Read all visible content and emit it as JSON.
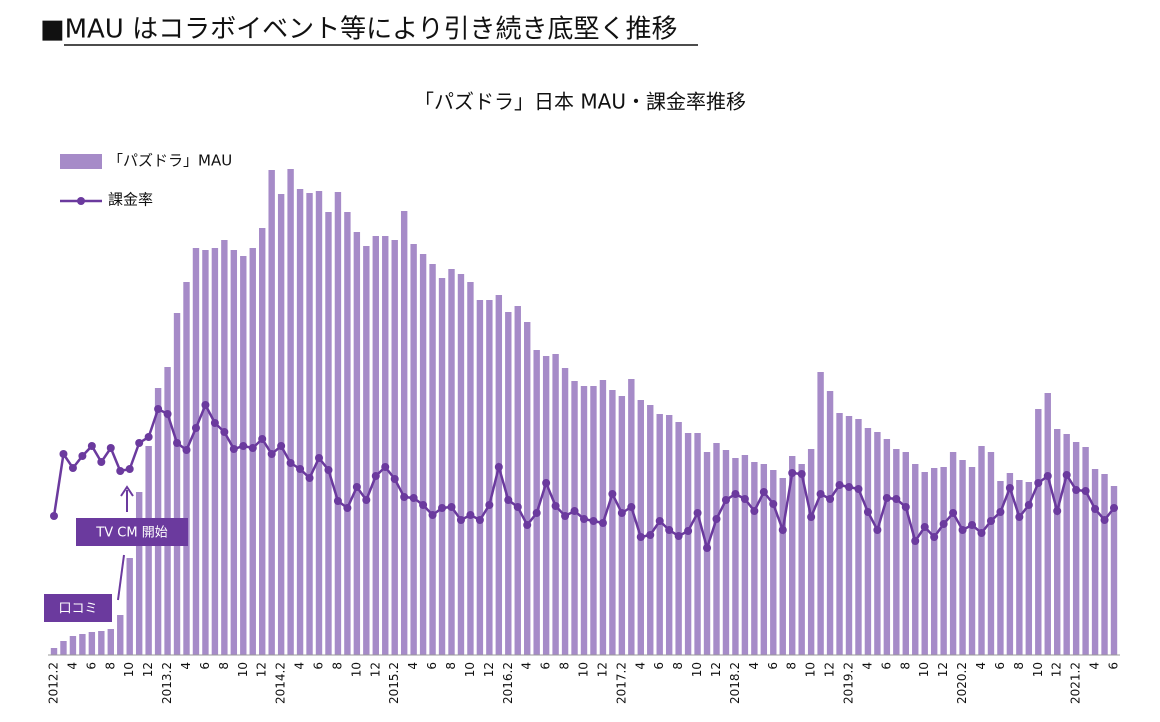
{
  "heading": "■MAU はコラボイベント等により引き続き底堅く推移",
  "chart_data": {
    "type": "bar",
    "title": "「パズドラ」日本 MAU・課金率推移",
    "categories": [
      "2012.2",
      null,
      "4",
      null,
      "6",
      null,
      "8",
      null,
      "10",
      null,
      "12",
      null,
      "2013.2",
      null,
      "4",
      null,
      "6",
      null,
      "8",
      null,
      "10",
      null,
      "12",
      null,
      "2014.2",
      null,
      "4",
      null,
      "6",
      null,
      "8",
      null,
      "10",
      null,
      "12",
      null,
      "2015.2",
      null,
      "4",
      null,
      "6",
      null,
      "8",
      null,
      "10",
      null,
      "12",
      null,
      "2016.2",
      null,
      "4",
      null,
      "6",
      null,
      "8",
      null,
      "10",
      null,
      "12",
      null,
      "2017.2",
      null,
      "4",
      null,
      "6",
      null,
      "8",
      null,
      "10",
      null,
      "12",
      null,
      "2018.2",
      null,
      "4",
      null,
      "6",
      null,
      "8",
      null,
      "10",
      null,
      "12",
      null,
      "2019.2",
      null,
      "4",
      null,
      "6",
      null,
      "8",
      null,
      "10",
      null,
      "12",
      null,
      "2020.2",
      null,
      "4",
      null,
      "6",
      null,
      "8",
      null,
      "10",
      null,
      "12",
      null,
      "2021.2",
      null,
      "4",
      null,
      "6"
    ],
    "series": [
      {
        "name": "「パズドラ」MAU",
        "type": "bar",
        "color": "#a68bc8",
        "values": [
          7,
          14,
          19,
          21,
          23,
          24,
          26,
          40,
          97,
          163,
          209,
          267,
          288,
          342,
          373,
          407,
          405,
          407,
          415,
          405,
          399,
          407,
          427,
          485,
          461,
          486,
          466,
          462,
          464,
          443,
          463,
          443,
          423,
          409,
          419,
          419,
          415,
          444,
          411,
          401,
          391,
          377,
          386,
          381,
          373,
          355,
          355,
          360,
          343,
          349,
          333,
          305,
          299,
          301,
          287,
          274,
          269,
          269,
          275,
          265,
          259,
          276,
          255,
          250,
          241,
          240,
          233,
          222,
          222,
          203,
          212,
          205,
          197,
          200,
          193,
          191,
          185,
          177,
          199,
          191,
          206,
          283,
          264,
          242,
          239,
          236,
          227,
          223,
          216,
          206,
          203,
          191,
          183,
          187,
          188,
          203,
          195,
          188,
          209,
          203,
          174,
          182,
          175,
          173,
          246,
          262,
          226,
          221,
          213,
          208,
          186,
          181,
          169
        ]
      },
      {
        "name": "課金率",
        "type": "line",
        "color": "#6b3a9e",
        "values": [
          139,
          201,
          187,
          199,
          209,
          193,
          207,
          184,
          186,
          212,
          218,
          246,
          241,
          212,
          205,
          227,
          250,
          232,
          223,
          206,
          209,
          207,
          216,
          201,
          209,
          192,
          186,
          177,
          197,
          185,
          154,
          147,
          168,
          155,
          179,
          188,
          176,
          158,
          157,
          150,
          140,
          147,
          148,
          135,
          140,
          135,
          150,
          188,
          155,
          148,
          130,
          142,
          172,
          149,
          139,
          144,
          136,
          134,
          132,
          161,
          142,
          148,
          118,
          120,
          134,
          125,
          119,
          124,
          142,
          107,
          136,
          155,
          161,
          156,
          144,
          163,
          151,
          125,
          182,
          181,
          138,
          161,
          156,
          170,
          168,
          166,
          143,
          125,
          157,
          156,
          148,
          114,
          128,
          118,
          131,
          142,
          125,
          130,
          122,
          134,
          143,
          167,
          138,
          150,
          172,
          179,
          144,
          180,
          165,
          164,
          146,
          135,
          147
        ]
      }
    ],
    "annotations": [
      "TV CM 開始",
      "口コミ"
    ]
  }
}
